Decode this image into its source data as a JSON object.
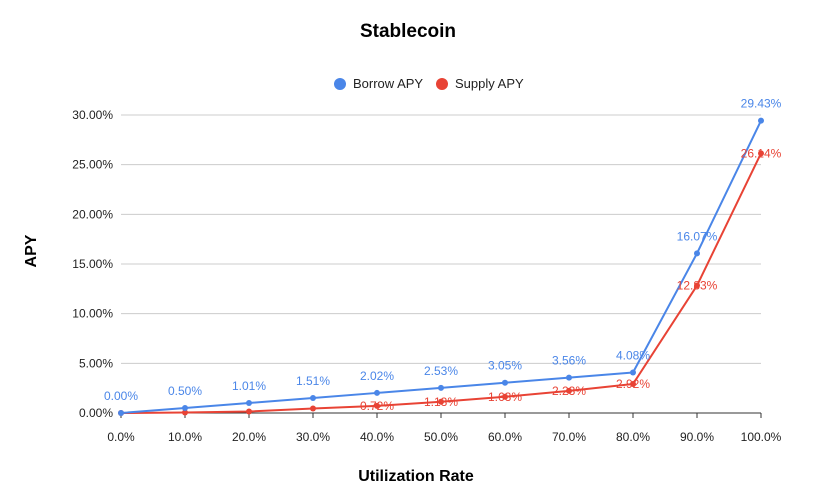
{
  "chart_data": {
    "type": "line",
    "title": "Stablecoin",
    "xlabel": "Utilization Rate",
    "ylabel": "APY",
    "x_tick_labels": [
      "0.0%",
      "10.0%",
      "20.0%",
      "30.0%",
      "40.0%",
      "50.0%",
      "60.0%",
      "70.0%",
      "80.0%",
      "90.0%",
      "100.0%"
    ],
    "y_tick_labels": [
      "0.00%",
      "5.00%",
      "10.00%",
      "15.00%",
      "20.00%",
      "25.00%",
      "30.00%"
    ],
    "x": [
      0,
      10,
      20,
      30,
      40,
      50,
      60,
      70,
      80,
      90,
      100
    ],
    "xlim": [
      0,
      100
    ],
    "ylim": [
      0,
      30
    ],
    "grid": true,
    "legend_position": "top",
    "series": [
      {
        "name": "Borrow APY",
        "color": "#4a86e8",
        "values": [
          0.0,
          0.5,
          1.01,
          1.51,
          2.02,
          2.53,
          3.05,
          3.56,
          4.08,
          16.07,
          29.43
        ],
        "labels": [
          "0.00%",
          "0.50%",
          "1.01%",
          "1.51%",
          "2.02%",
          "2.53%",
          "3.05%",
          "3.56%",
          "4.08%",
          "16.07%",
          "29.43%"
        ]
      },
      {
        "name": "Supply APY",
        "color": "#e84335",
        "values": [
          0.0,
          0.05,
          0.15,
          0.45,
          0.72,
          1.13,
          1.63,
          2.23,
          2.92,
          12.83,
          26.14
        ],
        "labels": [
          null,
          null,
          null,
          null,
          "0.72%",
          "1.13%",
          "1.63%",
          "2.23%",
          "2.92%",
          "12.83%",
          "26.14%"
        ]
      }
    ]
  }
}
